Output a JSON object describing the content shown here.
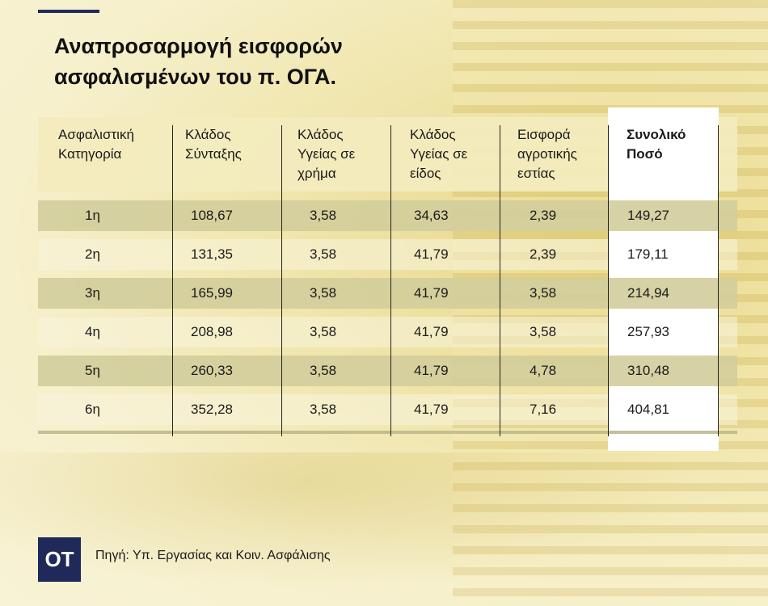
{
  "title": {
    "line1": "Αναπροσαρμογή εισφορών",
    "line2": "ασφαλισμένων του π. ΟΓΑ."
  },
  "table": {
    "headers": [
      [
        "Ασφαλιστική",
        "Κατηγορία"
      ],
      [
        "Κλάδος",
        "Σύνταξης"
      ],
      [
        "Κλάδος",
        "Υγείας σε",
        "χρήμα"
      ],
      [
        "Κλάδος",
        "Υγείας σε",
        "είδος"
      ],
      [
        "Εισφορά",
        "αγροτικής",
        "εστίας"
      ],
      [
        "Συνολικό",
        "Ποσό"
      ]
    ],
    "rows": [
      [
        "1η",
        "108,67",
        "3,58",
        "34,63",
        "2,39",
        "149,27"
      ],
      [
        "2η",
        "131,35",
        "3,58",
        "41,79",
        "2,39",
        "179,11"
      ],
      [
        "3η",
        "165,99",
        "3,58",
        "41,79",
        "3,58",
        "214,94"
      ],
      [
        "4η",
        "208,98",
        "3,58",
        "41,79",
        "3,58",
        "257,93"
      ],
      [
        "5η",
        "260,33",
        "3,58",
        "41,79",
        "4,78",
        "310,48"
      ],
      [
        "6η",
        "352,28",
        "3,58",
        "41,79",
        "7,16",
        "404,81"
      ]
    ]
  },
  "logo": "ΟΤ",
  "source": "Πηγή: Υπ. Εργασίας και Κοιν. Ασφάλισης",
  "colors": {
    "brand": "#1f2a5a",
    "header_band": "#f3ecbe",
    "dark_row": "#d2cd9b",
    "total_column": "#ffffff"
  }
}
